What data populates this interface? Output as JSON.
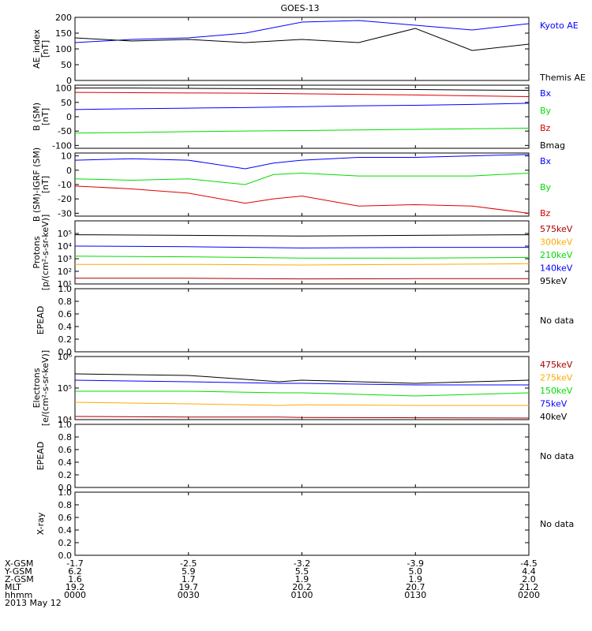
{
  "title": "GOES-13",
  "colors": {
    "black": "#000000",
    "blue": "#0000ff",
    "green": "#00dd00",
    "red": "#dd0000",
    "orange": "#ffaa00",
    "darkred": "#aa0000"
  },
  "chart_data": [
    {
      "id": "ae",
      "type": "line",
      "ylabel": "AE_index\n[nT]",
      "ylim": [
        0,
        200
      ],
      "yscale": "linear",
      "yticks": [
        0,
        50,
        100,
        150,
        200
      ],
      "ytick_labels": [
        "0",
        "50",
        "100",
        "150",
        "200"
      ],
      "x_hours": [
        0,
        0.25,
        0.5,
        0.75,
        1.0,
        1.25,
        1.5,
        1.75,
        2.0
      ],
      "series": [
        {
          "name": "Kyoto AE",
          "color": "blue",
          "values": [
            120,
            130,
            135,
            150,
            185,
            190,
            175,
            160,
            180
          ]
        },
        {
          "name": "Themis AE",
          "color": "black",
          "values": [
            135,
            125,
            130,
            120,
            130,
            120,
            165,
            95,
            115
          ]
        }
      ]
    },
    {
      "id": "bsm",
      "type": "line",
      "ylabel": "B (SM)\n[nT]",
      "ylim": [
        -110,
        110
      ],
      "yscale": "linear",
      "yticks": [
        -100,
        -50,
        0,
        50,
        100
      ],
      "ytick_labels": [
        "-100",
        "-50",
        "0",
        "50",
        "100"
      ],
      "x_hours": [
        0,
        0.25,
        0.5,
        0.75,
        1.0,
        1.25,
        1.5,
        1.75,
        2.0
      ],
      "series": [
        {
          "name": "Bx",
          "color": "blue",
          "values": [
            25,
            28,
            30,
            32,
            35,
            38,
            40,
            43,
            47
          ]
        },
        {
          "name": "By",
          "color": "green",
          "values": [
            -57,
            -55,
            -52,
            -50,
            -48,
            -46,
            -44,
            -42,
            -40
          ]
        },
        {
          "name": "Bz",
          "color": "red",
          "values": [
            85,
            84,
            83,
            82,
            80,
            78,
            76,
            73,
            70
          ]
        },
        {
          "name": "Bmag",
          "color": "black",
          "values": [
            100,
            100,
            99,
            98,
            97,
            96,
            95,
            93,
            92
          ]
        }
      ]
    },
    {
      "id": "bigrf",
      "type": "line",
      "ylabel": "B (SM)-IGRF (SM)\n[nT]",
      "ylim": [
        -32,
        12
      ],
      "yscale": "linear",
      "yticks": [
        -30,
        -20,
        -10,
        0,
        10
      ],
      "ytick_labels": [
        "-30",
        "-20",
        "-10",
        "0",
        "10"
      ],
      "x_hours": [
        0,
        0.25,
        0.5,
        0.75,
        0.875,
        1.0,
        1.25,
        1.5,
        1.75,
        2.0
      ],
      "series": [
        {
          "name": "Bx",
          "color": "blue",
          "values": [
            7,
            8,
            7,
            1,
            5,
            7,
            9,
            9,
            10,
            11
          ]
        },
        {
          "name": "By",
          "color": "green",
          "values": [
            -6,
            -7,
            -6,
            -10,
            -3,
            -2,
            -4,
            -4,
            -4,
            -2
          ]
        },
        {
          "name": "Bz",
          "color": "red",
          "values": [
            -11,
            -13,
            -16,
            -23,
            -20,
            -18,
            -25,
            -24,
            -25,
            -30
          ]
        }
      ]
    },
    {
      "id": "protons",
      "type": "line",
      "ylabel": "Protons\n[p/(cm²-s-sr-keV)]",
      "ylim": [
        1,
        6
      ],
      "yscale": "log",
      "yticks": [
        1,
        2,
        3,
        4,
        5
      ],
      "ytick_labels": [
        "10¹",
        "10²",
        "10³",
        "10⁴",
        "10⁵"
      ],
      "x_hours": [
        0,
        0.5,
        1.0,
        1.5,
        2.0
      ],
      "series": [
        {
          "name": "575keV",
          "color": "darkred",
          "values": [
            1.45,
            1.45,
            1.4,
            1.42,
            1.42
          ]
        },
        {
          "name": "300keV",
          "color": "orange",
          "values": [
            2.55,
            2.55,
            2.5,
            2.55,
            2.6
          ]
        },
        {
          "name": "210keV",
          "color": "green",
          "values": [
            3.2,
            3.15,
            3.05,
            3.05,
            3.1
          ]
        },
        {
          "name": "140keV",
          "color": "blue",
          "values": [
            4.0,
            3.95,
            3.85,
            3.9,
            3.9
          ]
        },
        {
          "name": "95keV",
          "color": "black",
          "values": [
            4.9,
            4.85,
            4.8,
            4.85,
            4.9
          ]
        }
      ]
    },
    {
      "id": "epead1",
      "type": "line",
      "ylabel": "EPEAD",
      "ylim": [
        0,
        1
      ],
      "yscale": "linear",
      "yticks": [
        0,
        0.2,
        0.4,
        0.6,
        0.8,
        1.0
      ],
      "ytick_labels": [
        "0.0",
        "0.2",
        "0.4",
        "0.6",
        "0.8",
        "1.0"
      ],
      "x_hours": [],
      "series": [],
      "note": "No data"
    },
    {
      "id": "electrons",
      "type": "line",
      "ylabel": "Electrons\n[e/(cm²-s-sr-keV)]",
      "ylim": [
        4,
        6
      ],
      "yscale": "log",
      "yticks": [
        4,
        5,
        6
      ],
      "ytick_labels": [
        "10⁴",
        "10⁵",
        "10⁶"
      ],
      "x_hours": [
        0,
        0.5,
        0.9,
        1.0,
        1.5,
        2.0
      ],
      "series": [
        {
          "name": "475keV",
          "color": "darkred",
          "values": [
            4.1,
            4.08,
            4.08,
            4.07,
            4.06,
            4.05
          ]
        },
        {
          "name": "275keV",
          "color": "orange",
          "values": [
            4.55,
            4.5,
            4.45,
            4.47,
            4.45,
            4.45
          ]
        },
        {
          "name": "150keV",
          "color": "green",
          "values": [
            4.9,
            4.9,
            4.85,
            4.85,
            4.75,
            4.85
          ]
        },
        {
          "name": "75keV",
          "color": "blue",
          "values": [
            5.25,
            5.2,
            5.15,
            5.15,
            5.1,
            5.1
          ]
        },
        {
          "name": "40keV",
          "color": "black",
          "values": [
            5.45,
            5.4,
            5.2,
            5.25,
            5.15,
            5.25
          ]
        }
      ]
    },
    {
      "id": "epead2",
      "type": "line",
      "ylabel": "EPEAD",
      "ylim": [
        0,
        1
      ],
      "yscale": "linear",
      "yticks": [
        0,
        0.2,
        0.4,
        0.6,
        0.8,
        1.0
      ],
      "ytick_labels": [
        "0.0",
        "0.2",
        "0.4",
        "0.6",
        "0.8",
        "1.0"
      ],
      "x_hours": [],
      "series": [],
      "note": "No data"
    },
    {
      "id": "xray",
      "type": "line",
      "ylabel": "X-ray",
      "ylim": [
        0,
        1
      ],
      "yscale": "linear",
      "yticks": [
        0,
        0.2,
        0.4,
        0.6,
        0.8,
        1.0
      ],
      "ytick_labels": [
        "0.0",
        "0.2",
        "0.4",
        "0.6",
        "0.8",
        "1.0"
      ],
      "x_hours": [],
      "series": [],
      "note": "No data"
    }
  ],
  "x_axis": {
    "range_hours": [
      0,
      2
    ],
    "tick_hours": [
      0,
      0.5,
      1.0,
      1.5,
      2.0
    ],
    "rows": [
      {
        "label": "X-GSM",
        "values": [
          "-1.7",
          "-2.5",
          "-3.2",
          "-3.9",
          "-4.5"
        ]
      },
      {
        "label": "Y-GSM",
        "values": [
          "6.2",
          "5.9",
          "5.5",
          "5.0",
          "4.4"
        ]
      },
      {
        "label": "Z-GSM",
        "values": [
          "1.6",
          "1.7",
          "1.9",
          "1.9",
          "2.0"
        ]
      },
      {
        "label": "MLT",
        "values": [
          "19.2",
          "19.7",
          "20.2",
          "20.7",
          "21.2"
        ]
      },
      {
        "label": "hhmm",
        "values": [
          "0000",
          "0030",
          "0100",
          "0130",
          "0200"
        ]
      }
    ],
    "date": "2013 May 12"
  }
}
